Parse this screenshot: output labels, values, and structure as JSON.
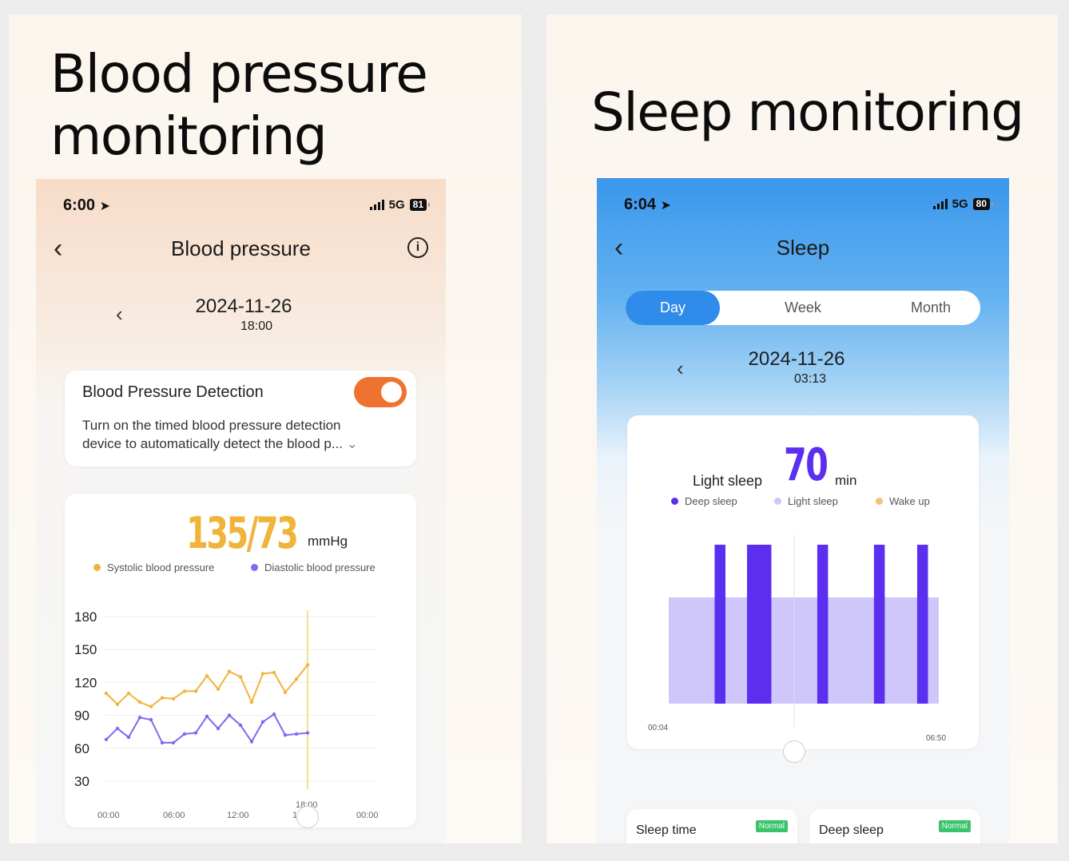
{
  "left": {
    "headline": [
      "Blood pressure",
      "monitoring"
    ],
    "status": {
      "time": "6:00",
      "network": "5G",
      "battery": "81"
    },
    "nav": {
      "title": "Blood pressure"
    },
    "date": {
      "date": "2024-11-26",
      "time": "18:00"
    },
    "detection": {
      "title": "Blood Pressure Detection",
      "description_line1": "Turn on the timed blood pressure detection",
      "description_line2": "device to automatically detect the blood p...",
      "toggle_on": true
    },
    "reading": {
      "value": "135/73",
      "unit": "mmHg"
    },
    "legend": {
      "systolic": "Systolic blood pressure",
      "diastolic": "Diastolic blood pressure"
    },
    "colors": {
      "systolic": "#f0b43a",
      "diastolic": "#7b6cf0",
      "toggle": "#f07231",
      "value": "#f0b43a"
    },
    "chart_data": {
      "type": "line",
      "y_ticks": [
        "180",
        "150",
        "120",
        "90",
        "60",
        "30"
      ],
      "x_ticks": [
        "00:00",
        "06:00",
        "12:00",
        "18:00",
        "00:00"
      ],
      "ylim": [
        30,
        180
      ],
      "cursor_label": "18:00",
      "series": [
        {
          "name": "Systolic blood pressure",
          "values": [
            110,
            100,
            110,
            102,
            98,
            106,
            105,
            112,
            112,
            126,
            114,
            130,
            125,
            102,
            128,
            129,
            111,
            123,
            136
          ]
        },
        {
          "name": "Diastolic blood pressure",
          "values": [
            68,
            78,
            70,
            88,
            86,
            65,
            65,
            73,
            74,
            89,
            78,
            90,
            81,
            66,
            84,
            91,
            72,
            73,
            74
          ]
        }
      ]
    }
  },
  "right": {
    "headline": "Sleep monitoring",
    "status": {
      "time": "6:04",
      "network": "5G",
      "battery": "80"
    },
    "nav": {
      "title": "Sleep"
    },
    "tabs": [
      "Day",
      "Week",
      "Month"
    ],
    "active_tab": "Day",
    "date": {
      "date": "2024-11-26",
      "time": "03:13"
    },
    "summary": {
      "label": "Light sleep",
      "value": "70",
      "unit": "min"
    },
    "legend": {
      "deep": "Deep sleep",
      "light": "Light sleep",
      "wake": "Wake up"
    },
    "colors": {
      "deep": "#5b2ef0",
      "light": "#cfc6fa",
      "wake": "#f0c27a",
      "tab_active": "#2f8cea"
    },
    "chart_data": {
      "type": "bar",
      "x_start": "00:04",
      "x_end": "06:50",
      "light_sleep_span": [
        0.0,
        1.0
      ],
      "deep_sleep_blocks": [
        [
          0.17,
          0.21
        ],
        [
          0.29,
          0.38
        ],
        [
          0.55,
          0.59
        ],
        [
          0.76,
          0.8
        ],
        [
          0.92,
          0.96
        ]
      ]
    },
    "bottom_cards": [
      {
        "title": "Sleep time",
        "badge": "Normal"
      },
      {
        "title": "Deep sleep",
        "badge": "Normal"
      }
    ]
  }
}
